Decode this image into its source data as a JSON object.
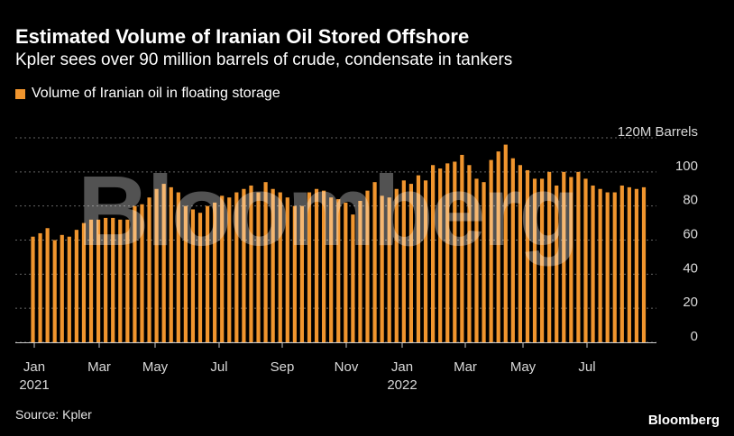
{
  "header": {
    "title": "Estimated Volume of Iranian Oil Stored Offshore",
    "subtitle": "Kpler sees over 90 million barrels of crude, condensate in tankers"
  },
  "legend": {
    "label": "Volume of Iranian oil in floating storage"
  },
  "footer": {
    "source": "Source: Kpler",
    "brand": "Bloomberg"
  },
  "watermark": "Bloomberg",
  "colors": {
    "bar": "#f0952e",
    "background": "#000000",
    "grid": "#666666"
  },
  "chart_data": {
    "type": "bar",
    "title": "Estimated Volume of Iranian Oil Stored Offshore",
    "subtitle": "Kpler sees over 90 million barrels of crude, condensate in tankers",
    "series": [
      {
        "name": "Volume of Iranian oil in floating storage",
        "values": [
          62,
          64,
          67,
          60,
          63,
          62,
          66,
          70,
          72,
          72,
          73,
          73,
          72,
          72,
          80,
          81,
          85,
          90,
          93,
          91,
          88,
          80,
          78,
          76,
          80,
          82,
          86,
          85,
          88,
          90,
          92,
          88,
          94,
          90,
          88,
          85,
          80,
          80,
          88,
          90,
          89,
          85,
          84,
          82,
          75,
          83,
          89,
          94,
          86,
          85,
          90,
          95,
          93,
          98,
          95,
          104,
          102,
          105,
          106,
          110,
          104,
          96,
          94,
          107,
          112,
          116,
          108,
          104,
          101,
          96,
          96,
          100,
          92,
          100,
          97,
          100,
          96,
          92,
          90,
          88,
          88,
          92,
          91,
          90,
          91
        ]
      }
    ],
    "x_tick_labels": [
      "Jan\n2021",
      "Mar",
      "May",
      "Jul",
      "Sep",
      "Nov",
      "Jan\n2022",
      "Mar",
      "May",
      "Jul"
    ],
    "y_ticks": [
      0,
      20,
      40,
      60,
      80,
      100,
      120
    ],
    "y_unit_label": "120M Barrels",
    "ylim": [
      0,
      120
    ],
    "grid": "horizontal dotted",
    "legend_position": "top-left"
  }
}
